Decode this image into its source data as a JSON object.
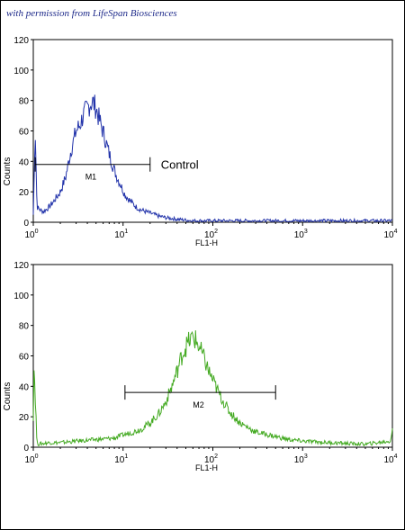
{
  "credit": "with permission from LifeSpan Biosciences",
  "chart_data": [
    {
      "type": "line",
      "scale_x": "log",
      "xlabel": "FL1-H",
      "ylabel": "Counts",
      "xlim": [
        1,
        10000
      ],
      "ylim": [
        0,
        120
      ],
      "x_ticks": [
        {
          "v": 1,
          "base": "10",
          "exp": "0"
        },
        {
          "v": 10,
          "base": "10",
          "exp": "1"
        },
        {
          "v": 100,
          "base": "10",
          "exp": "2"
        },
        {
          "v": 1000,
          "base": "10",
          "exp": "3"
        },
        {
          "v": 10000,
          "base": "10",
          "exp": "4"
        }
      ],
      "y_ticks": [
        "0",
        "20",
        "40",
        "60",
        "80",
        "100",
        "120"
      ],
      "color": "#2233aa",
      "marker": {
        "label": "M1",
        "x_start": 1.05,
        "x_end": 20,
        "y": 38
      },
      "annotation": "Control",
      "series": [
        {
          "x": [
            1.0,
            1.05,
            1.1,
            1.2,
            1.3,
            1.5,
            1.7,
            2.0,
            2.3,
            2.6,
            3.0,
            3.3,
            3.6,
            4.0,
            4.3,
            4.6,
            5.0,
            5.4,
            5.8,
            6.3,
            7.0,
            7.8,
            8.5,
            9.5,
            10.5,
            12,
            14,
            16,
            20,
            25,
            30,
            40,
            60,
            100,
            200,
            500,
            1000,
            3000,
            10000
          ],
          "y": [
            5,
            62,
            10,
            8,
            7,
            10,
            14,
            20,
            30,
            46,
            60,
            64,
            70,
            75,
            78,
            79,
            75,
            68,
            62,
            55,
            45,
            36,
            30,
            24,
            18,
            14,
            10,
            8,
            6,
            4,
            3,
            2,
            1,
            1,
            1,
            1,
            1,
            1,
            1
          ]
        }
      ]
    },
    {
      "type": "line",
      "scale_x": "log",
      "xlabel": "FL1-H",
      "ylabel": "Counts",
      "xlim": [
        1,
        10000
      ],
      "ylim": [
        0,
        120
      ],
      "x_ticks": [
        {
          "v": 1,
          "base": "10",
          "exp": "0"
        },
        {
          "v": 10,
          "base": "10",
          "exp": "1"
        },
        {
          "v": 100,
          "base": "10",
          "exp": "2"
        },
        {
          "v": 1000,
          "base": "10",
          "exp": "3"
        },
        {
          "v": 10000,
          "base": "10",
          "exp": "4"
        }
      ],
      "y_ticks": [
        "0",
        "20",
        "40",
        "60",
        "80",
        "100",
        "120"
      ],
      "color": "#44aa22",
      "marker": {
        "label": "M2",
        "x_start": 10.5,
        "x_end": 500,
        "y": 36
      },
      "annotation": "",
      "series": [
        {
          "x": [
            1.0,
            1.02,
            1.1,
            1.5,
            2,
            3,
            5,
            8,
            10,
            13,
            16,
            20,
            25,
            30,
            35,
            40,
            45,
            50,
            55,
            60,
            65,
            70,
            75,
            80,
            90,
            100,
            120,
            150,
            200,
            300,
            500,
            700,
            1000,
            2000,
            5000,
            9500,
            10000
          ],
          "y": [
            20,
            55,
            2,
            3,
            3,
            4,
            5,
            6,
            8,
            10,
            12,
            16,
            22,
            30,
            40,
            50,
            60,
            66,
            70,
            72,
            70,
            66,
            62,
            58,
            50,
            44,
            34,
            24,
            16,
            10,
            7,
            5,
            4,
            3,
            2,
            4,
            12
          ]
        }
      ]
    }
  ]
}
